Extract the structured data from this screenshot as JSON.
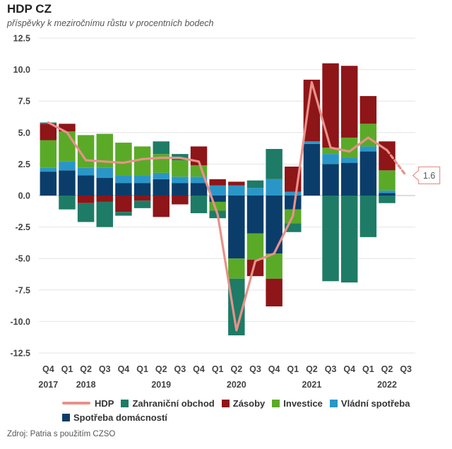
{
  "title": "HDP CZ",
  "subtitle": "příspěvky k meziročnímu růstu v procentních bodech",
  "source": "Zdroj: Patria s použitím CZSO",
  "colors": {
    "spotreba": "#0b3d6b",
    "vladni": "#2a96c8",
    "investice": "#5aaa28",
    "zasoby": "#8e1518",
    "zahranicni": "#1e7b66",
    "hdp": "#e8918a",
    "callout": "#e8918a"
  },
  "legend": {
    "hdp": "HDP",
    "zahranicni": "Zahraniční obchod",
    "zasoby": "Zásoby",
    "investice": "Investice",
    "vladni": "Vládní spotřeba",
    "spotreba": "Spotřeba domácností"
  },
  "chart_data": {
    "type": "bar",
    "stacked": true,
    "title": "HDP CZ",
    "subtitle": "příspěvky k meziročnímu růstu v procentních bodech",
    "quarters": [
      "Q4",
      "Q1",
      "Q2",
      "Q3",
      "Q4",
      "Q1",
      "Q2",
      "Q3",
      "Q4",
      "Q1",
      "Q2",
      "Q3",
      "Q4",
      "Q1",
      "Q2",
      "Q3",
      "Q4",
      "Q1",
      "Q2",
      "Q3"
    ],
    "years": [
      {
        "label": "2017",
        "index": 0
      },
      {
        "label": "2018",
        "index": 2
      },
      {
        "label": "2019",
        "index": 6
      },
      {
        "label": "2020",
        "index": 10
      },
      {
        "label": "2021",
        "index": 14
      },
      {
        "label": "2022",
        "index": 18
      }
    ],
    "ylim": [
      -12.5,
      12.5
    ],
    "yticks": [
      "12.5",
      "10.0",
      "7.5",
      "5.0",
      "2.5",
      "0.0",
      "-2.5",
      "-5.0",
      "-7.5",
      "-10.0",
      "-12.5"
    ],
    "series": [
      {
        "key": "spotreba",
        "name": "Spotřeba domácností",
        "values": [
          1.9,
          2.0,
          1.6,
          1.4,
          1.0,
          1.0,
          1.3,
          1.0,
          1.0,
          -0.5,
          -5.0,
          -3.0,
          -4.6,
          -1.1,
          4.1,
          2.5,
          2.6,
          3.5,
          0.2,
          null
        ]
      },
      {
        "key": "vladni",
        "name": "Vládní spotřeba",
        "values": [
          0.3,
          0.7,
          0.6,
          0.8,
          0.6,
          0.6,
          0.5,
          0.5,
          0.5,
          0.8,
          0.8,
          0.6,
          1.3,
          0.3,
          0.2,
          0.8,
          0.4,
          0.4,
          0.2,
          null
        ]
      },
      {
        "key": "investice",
        "name": "Investice",
        "values": [
          2.2,
          2.4,
          2.6,
          2.7,
          2.6,
          2.3,
          1.5,
          1.3,
          0.9,
          -0.7,
          -1.6,
          -2.1,
          -2.0,
          -1.1,
          0.0,
          0.5,
          1.6,
          1.8,
          1.6,
          null
        ]
      },
      {
        "key": "zasoby",
        "name": "Zásoby",
        "values": [
          1.3,
          0.6,
          -0.6,
          -0.5,
          -1.3,
          -0.4,
          -1.7,
          -0.7,
          1.5,
          0.5,
          0.3,
          -1.3,
          -2.2,
          2.0,
          4.9,
          6.7,
          5.7,
          2.2,
          2.3,
          null
        ]
      },
      {
        "key": "zahranicni",
        "name": "Zahraniční obchod",
        "values": [
          0.1,
          -1.1,
          -1.5,
          -2.0,
          -0.3,
          -0.6,
          1.0,
          0.5,
          -1.4,
          -0.6,
          -4.5,
          0.6,
          2.4,
          -0.7,
          0.0,
          -6.8,
          -6.9,
          -3.3,
          -0.6,
          null
        ]
      }
    ],
    "hdp": {
      "name": "HDP",
      "values": [
        5.8,
        5.0,
        2.8,
        2.7,
        2.6,
        2.9,
        3.0,
        3.0,
        2.7,
        -1.5,
        -10.7,
        -5.2,
        -4.6,
        -1.6,
        9.0,
        3.8,
        3.5,
        4.6,
        3.6,
        1.6
      ],
      "forecast_from_index": 18
    },
    "callout": {
      "label": "1.6",
      "index": 19,
      "value": 1.6
    }
  }
}
